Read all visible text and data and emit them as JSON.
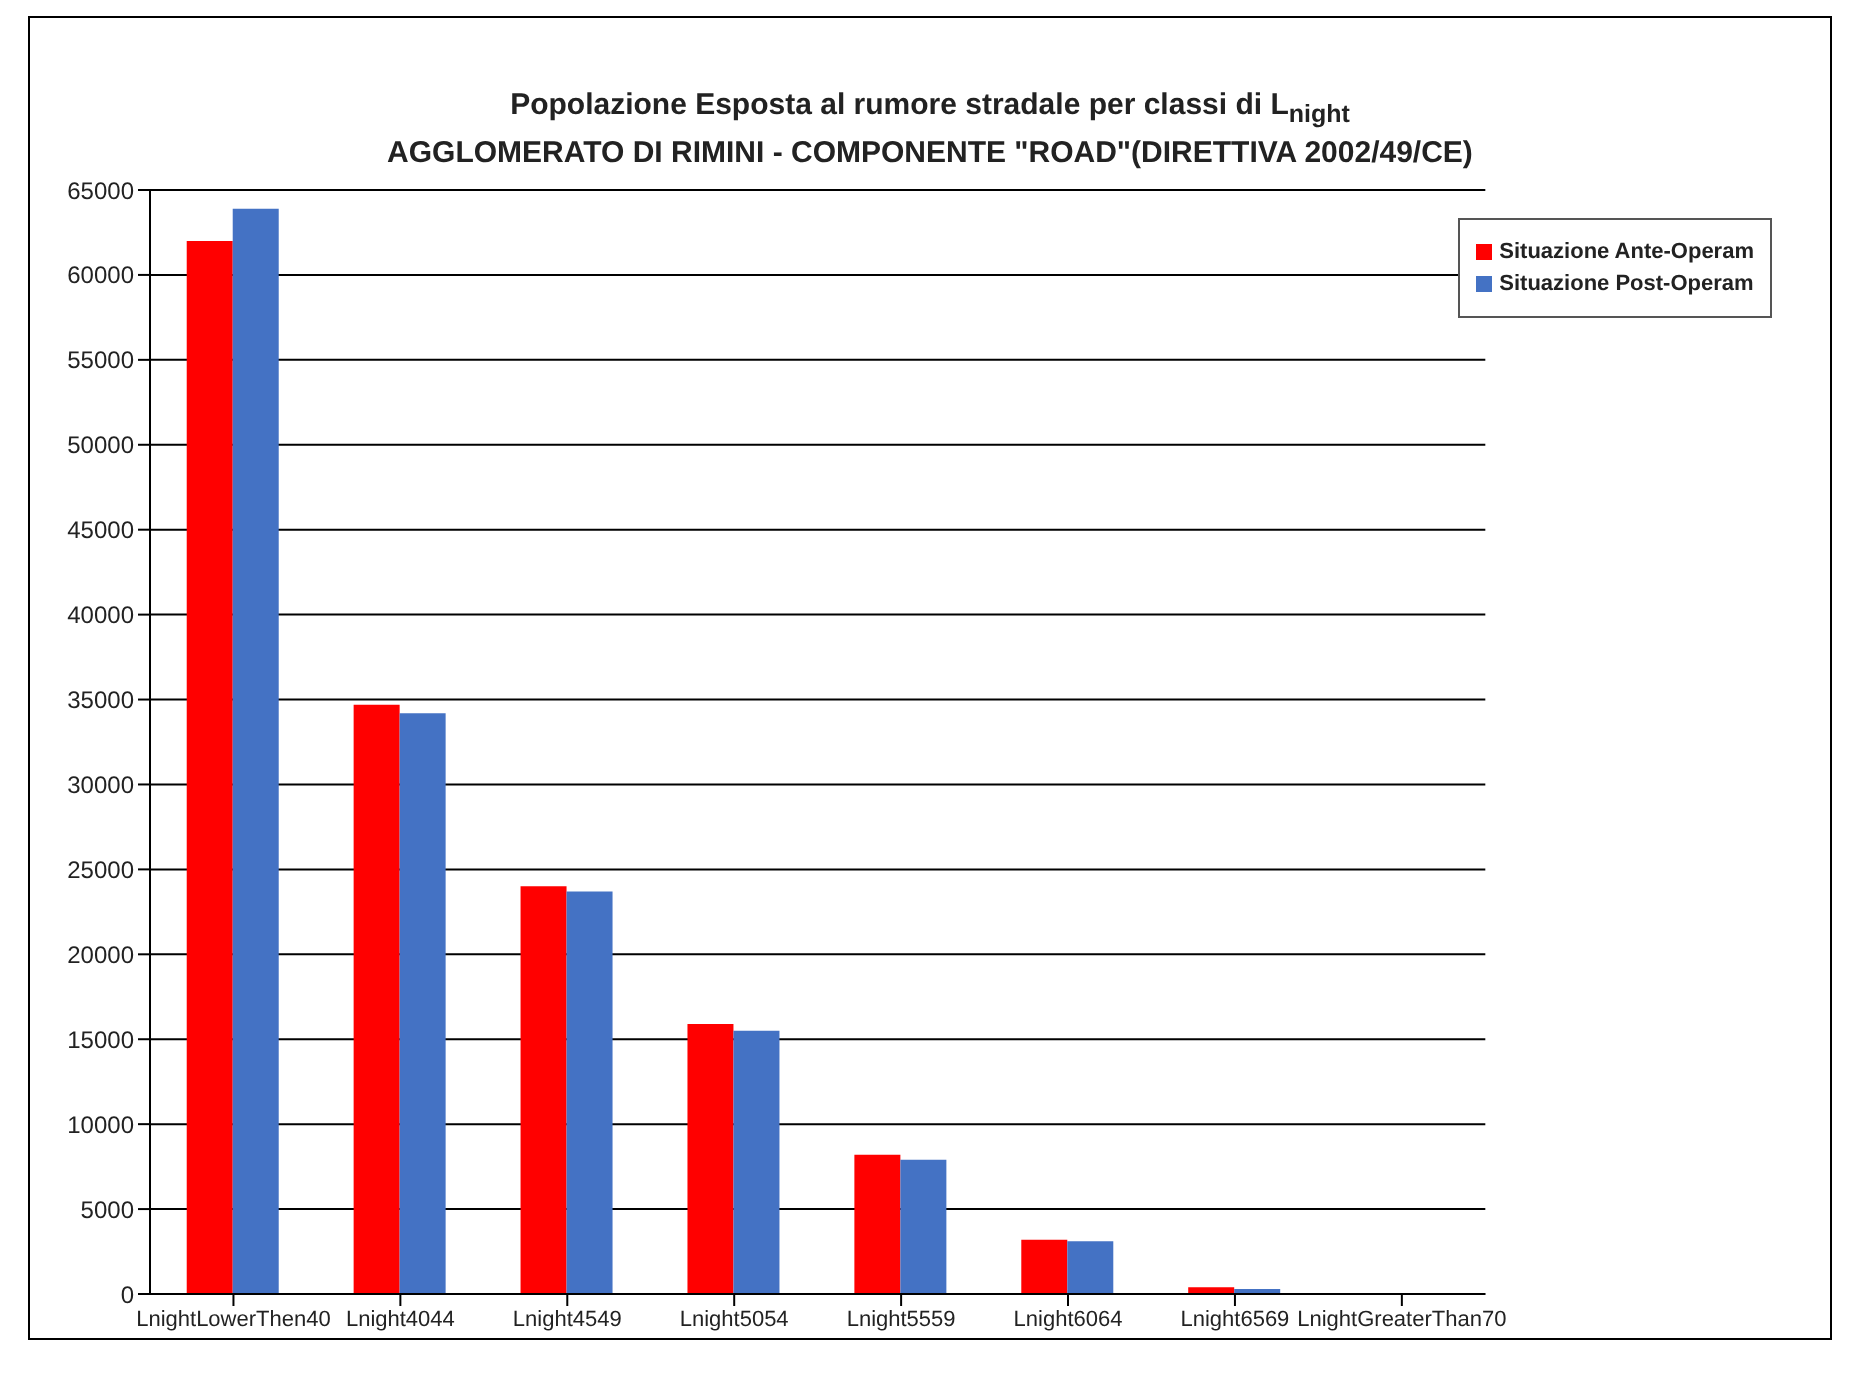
{
  "chart_data": {
    "type": "bar",
    "title": "Popolazione Esposta al rumore stradale per classi di L$_{night}$",
    "subtitle": "AGGLOMERATO DI RIMINI - COMPONENTE \"ROAD\"(DIRETTIVA 2002/49/CE)",
    "categories": [
      "LnightLowerThen40",
      "Lnight4044",
      "Lnight4549",
      "Lnight5054",
      "Lnight5559",
      "Lnight6064",
      "Lnight6569",
      "LnightGreaterThan70"
    ],
    "series": [
      {
        "name": "Situazione Ante-Operam",
        "color": "#ff0000",
        "values": [
          62000,
          34700,
          24000,
          15900,
          8200,
          3200,
          400,
          0
        ]
      },
      {
        "name": "Situazione Post-Operam",
        "color": "#4472c4",
        "values": [
          63900,
          34200,
          23700,
          15500,
          7900,
          3100,
          300,
          0
        ]
      }
    ],
    "ylim": [
      0,
      65000
    ],
    "yticks": [
      0,
      5000,
      10000,
      15000,
      20000,
      25000,
      30000,
      35000,
      40000,
      45000,
      50000,
      55000,
      60000,
      65000
    ],
    "grid": "y",
    "legend": "top right"
  }
}
